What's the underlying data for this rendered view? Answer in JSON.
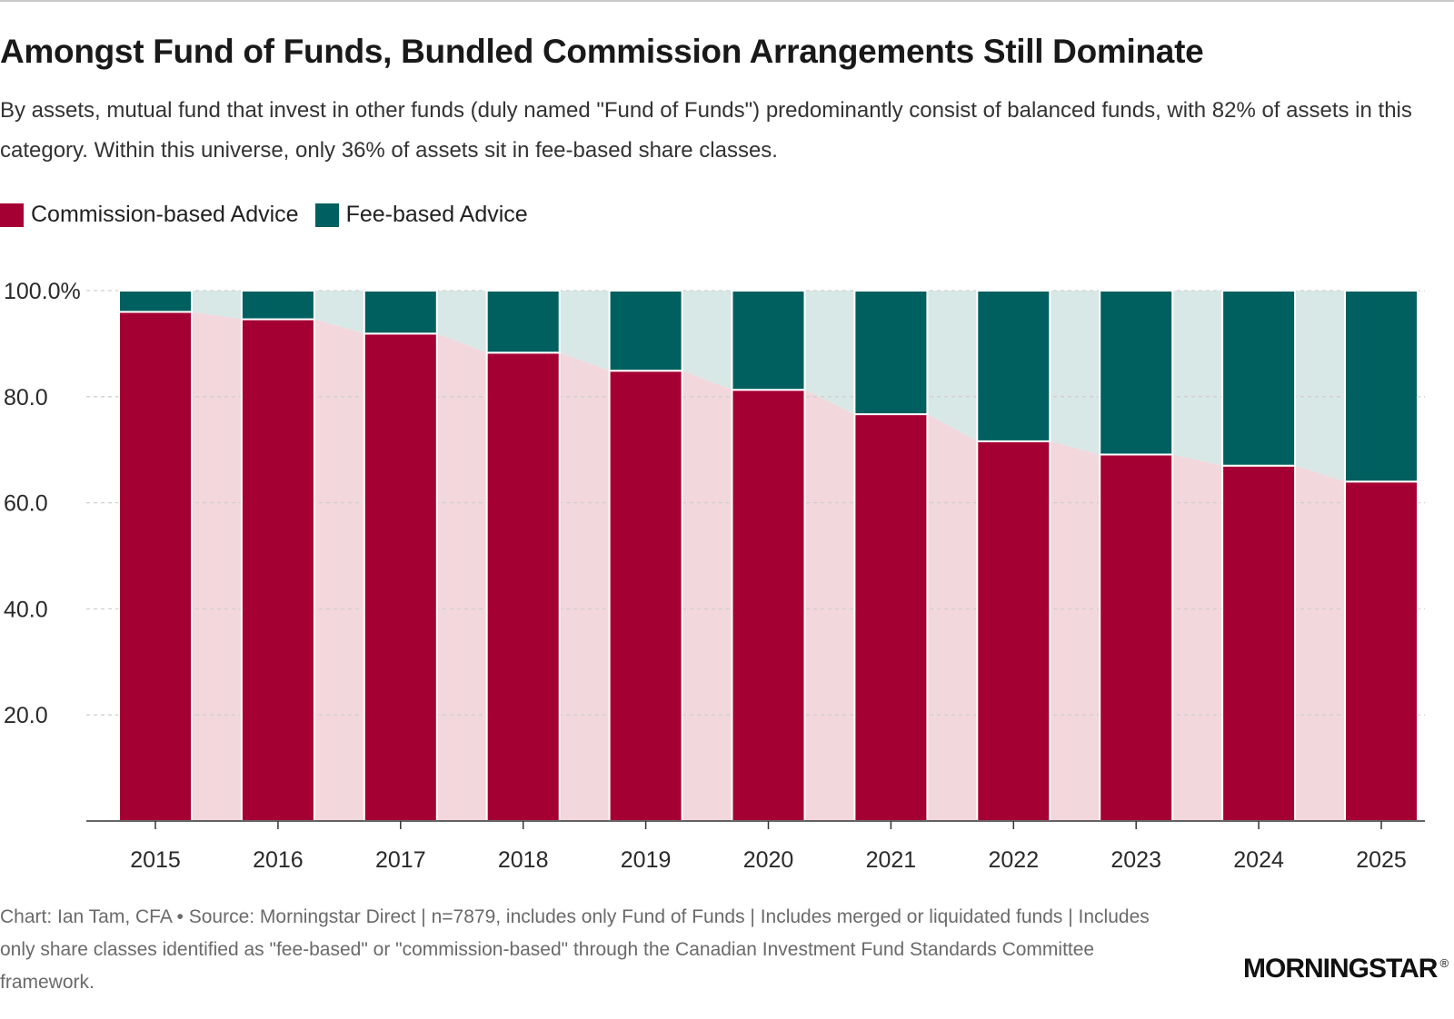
{
  "title": "Amongst Fund of Funds, Bundled Commission Arrangements Still Dominate",
  "subtitle": "By assets, mutual fund that invest in other funds (duly named \"Fund of Funds\") predominantly consist of balanced funds, with 82% of assets in this category. Within this universe, only 36% of assets sit in fee-based share classes.",
  "footer": {
    "text": "Chart: Ian Tam, CFA  • Source: Morningstar Direct | n=7879, includes only Fund of Funds | Includes merged or liquidated funds | Includes only share classes identified as \"fee-based\" or \"commission-based\" through the Canadian Investment Fund Standards Committee framework."
  },
  "logo": {
    "text": "MORNINGSTAR",
    "mark": "®"
  },
  "colors": {
    "commission": "#a50034",
    "fee": "#00605f",
    "commission_band": "#f2d7dd",
    "fee_band": "#d8e8e7",
    "grid": "#cfcfcf",
    "axis": "#333333"
  },
  "chart_data": {
    "type": "bar",
    "stacked": true,
    "categories": [
      "2015",
      "2016",
      "2017",
      "2018",
      "2019",
      "2020",
      "2021",
      "2022",
      "2023",
      "2024",
      "2025"
    ],
    "series": [
      {
        "name": "Commission-based Advice",
        "values": [
          96,
          94.6,
          91.9,
          88.3,
          84.9,
          81.3,
          76.7,
          71.6,
          69.1,
          67,
          64
        ]
      },
      {
        "name": "Fee-based Advice",
        "values": [
          4,
          5.4,
          8.1,
          11.7,
          15.1,
          18.7,
          23.3,
          28.4,
          30.9,
          33,
          36
        ]
      }
    ],
    "ylim": [
      0,
      100
    ],
    "yticks": [
      20,
      40,
      60,
      80,
      100
    ],
    "ytick_labels": [
      "20.0",
      "40.0",
      "60.0",
      "80.0",
      "100.0%"
    ],
    "xlabel": "",
    "ylabel": "",
    "grid": true,
    "legend": "top-left"
  }
}
